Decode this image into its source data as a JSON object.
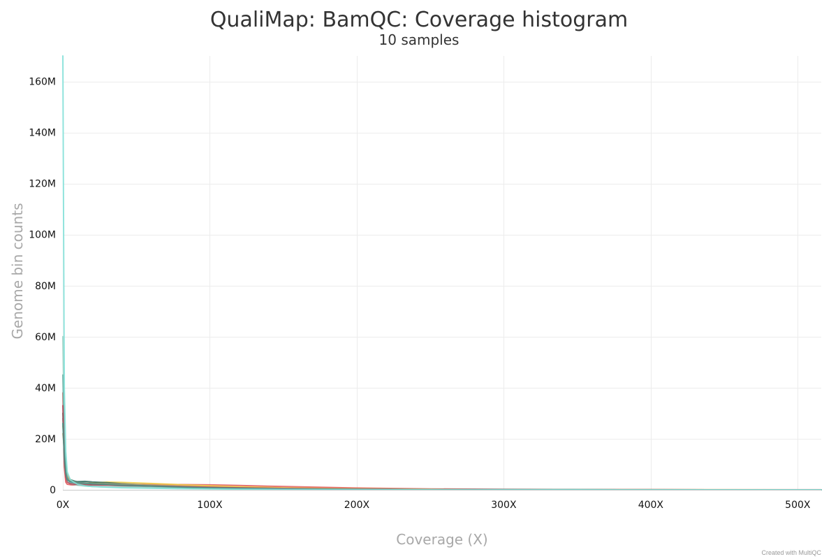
{
  "chart_data": {
    "type": "line",
    "title": "QualiMap: BamQC: Coverage histogram",
    "subtitle": "10 samples",
    "xlabel": "Coverage (X)",
    "ylabel": "Genome bin counts",
    "xlim": [
      0,
      516
    ],
    "ylim": [
      0,
      170000000
    ],
    "grid": true,
    "legend": "none",
    "credits": "Created with MultiQC",
    "x_ticks": [
      {
        "value": 0,
        "label": "0X"
      },
      {
        "value": 100,
        "label": "100X"
      },
      {
        "value": 200,
        "label": "200X"
      },
      {
        "value": 300,
        "label": "300X"
      },
      {
        "value": 400,
        "label": "400X"
      },
      {
        "value": 500,
        "label": "500X"
      }
    ],
    "y_ticks": [
      {
        "value": 0,
        "label": "0"
      },
      {
        "value": 20000000,
        "label": "20M"
      },
      {
        "value": 40000000,
        "label": "40M"
      },
      {
        "value": 60000000,
        "label": "60M"
      },
      {
        "value": 80000000,
        "label": "80M"
      },
      {
        "value": 100000000,
        "label": "100M"
      },
      {
        "value": 120000000,
        "label": "120M"
      },
      {
        "value": 140000000,
        "label": "140M"
      },
      {
        "value": 160000000,
        "label": "160M"
      }
    ],
    "series": [
      {
        "color": "#e15759",
        "x": [
          0,
          1,
          2,
          3,
          5,
          8,
          10,
          15,
          20,
          30,
          40,
          60,
          80,
          100,
          120,
          150,
          200,
          250,
          300,
          350,
          400,
          450,
          500,
          516
        ],
        "y": [
          38000000,
          9000000,
          3000000,
          2200000,
          2000000,
          1900000,
          2000000,
          1900000,
          1950000,
          2000000,
          2050000,
          2100000,
          2050000,
          1950000,
          1700000,
          1300000,
          700000,
          350000,
          200000,
          100000,
          50000,
          30000,
          20000,
          15000
        ]
      },
      {
        "color": "#f0c93c",
        "x": [
          0,
          1,
          2,
          3,
          5,
          8,
          10,
          15,
          20,
          30,
          40,
          60,
          80,
          100,
          120,
          150,
          200,
          250,
          300,
          350,
          400,
          450,
          500,
          516
        ],
        "y": [
          25000000,
          19000000,
          10000000,
          6000000,
          4000000,
          3000000,
          2800000,
          2600000,
          2700000,
          3000000,
          2900000,
          2500000,
          2000000,
          1600000,
          1200000,
          800000,
          400000,
          200000,
          100000,
          50000,
          25000,
          15000,
          10000,
          8000
        ]
      },
      {
        "color": "#2f6b5e",
        "x": [
          0,
          1,
          2,
          3,
          5,
          8,
          10,
          15,
          20,
          30,
          40,
          60,
          80,
          100,
          120,
          150,
          200,
          250,
          300,
          350,
          400,
          450,
          500,
          516
        ],
        "y": [
          30000000,
          15000000,
          8000000,
          5000000,
          4000000,
          3400000,
          3200000,
          3300000,
          3100000,
          2800000,
          2400000,
          1800000,
          1300000,
          900000,
          650000,
          400000,
          200000,
          100000,
          50000,
          25000,
          12000,
          7000,
          4000,
          3000
        ]
      },
      {
        "color": "#7a7a7a",
        "x": [
          0,
          1,
          2,
          3,
          5,
          8,
          10,
          15,
          20,
          30,
          40,
          60,
          80,
          100,
          120,
          150,
          200,
          250,
          300,
          350,
          400,
          450,
          500,
          516
        ],
        "y": [
          28000000,
          14000000,
          7000000,
          4500000,
          3500000,
          3000000,
          2800000,
          2700000,
          2500000,
          2200000,
          2000000,
          1600000,
          1200000,
          900000,
          700000,
          450000,
          220000,
          110000,
          60000,
          30000,
          15000,
          8000,
          5000,
          4000
        ]
      },
      {
        "color": "#c7a67a",
        "x": [
          0,
          1,
          2,
          3,
          5,
          8,
          10,
          15,
          20,
          30,
          40,
          60,
          80,
          100,
          120,
          150,
          200,
          250,
          300,
          350,
          400,
          450,
          500,
          516
        ],
        "y": [
          22000000,
          16000000,
          9000000,
          5500000,
          3800000,
          3000000,
          2700000,
          2500000,
          2400000,
          2300000,
          2200000,
          1900000,
          1500000,
          1100000,
          800000,
          500000,
          250000,
          120000,
          60000,
          30000,
          15000,
          8000,
          5000,
          4000
        ]
      },
      {
        "color": "#9ad0c2",
        "x": [
          0,
          1,
          2,
          3,
          5,
          8,
          10,
          15,
          20,
          30,
          40,
          60,
          80,
          100,
          120,
          150,
          200,
          250,
          300,
          350,
          400,
          450,
          500,
          516
        ],
        "y": [
          60000000,
          22000000,
          9000000,
          4000000,
          2500000,
          2000000,
          1800000,
          1500000,
          1300000,
          1100000,
          1000000,
          800000,
          600000,
          450000,
          350000,
          250000,
          150000,
          80000,
          40000,
          20000,
          10000,
          6000,
          4000,
          3000
        ]
      },
      {
        "color": "#6ab0a4",
        "x": [
          0,
          1,
          2,
          3,
          5,
          8,
          10,
          15,
          20,
          30,
          40,
          60,
          80,
          100,
          120,
          150,
          200,
          250,
          300,
          350,
          400,
          450,
          500,
          516
        ],
        "y": [
          45000000,
          18000000,
          8000000,
          4200000,
          3000000,
          2500000,
          2300000,
          2100000,
          2000000,
          1800000,
          1600000,
          1300000,
          1000000,
          750000,
          550000,
          350000,
          180000,
          90000,
          45000,
          22000,
          11000,
          6000,
          4000,
          3000
        ]
      },
      {
        "color": "#b04a5a",
        "x": [
          0,
          1,
          2,
          3,
          5,
          8,
          10,
          15,
          20,
          30,
          40,
          60,
          80,
          100,
          120,
          150,
          200,
          250,
          300,
          350,
          400,
          450,
          500,
          516
        ],
        "y": [
          33000000,
          11000000,
          5000000,
          3000000,
          2400000,
          2200000,
          2100000,
          2000000,
          1900000,
          1800000,
          1700000,
          1500000,
          1250000,
          1000000,
          800000,
          550000,
          300000,
          150000,
          80000,
          40000,
          20000,
          10000,
          6000,
          5000
        ]
      },
      {
        "color": "#4a8f86",
        "x": [
          0,
          1,
          2,
          3,
          5,
          8,
          10,
          15,
          20,
          30,
          40,
          60,
          80,
          100,
          120,
          150,
          200,
          250,
          300,
          350,
          400,
          450,
          500,
          516
        ],
        "y": [
          26000000,
          13000000,
          6500000,
          4000000,
          3200000,
          2900000,
          2700000,
          2600000,
          2400000,
          2100000,
          1900000,
          1500000,
          1100000,
          800000,
          600000,
          380000,
          190000,
          95000,
          48000,
          24000,
          12000,
          7000,
          4000,
          3000
        ]
      },
      {
        "color": "#7fe0d8",
        "x": [
          0,
          1,
          2,
          3,
          5,
          8,
          10,
          15,
          20,
          30,
          40,
          60,
          80,
          100,
          120,
          150,
          200,
          250,
          300,
          350,
          400,
          450,
          500,
          516
        ],
        "y": [
          170000000,
          40000000,
          15000000,
          7000000,
          4000000,
          2800000,
          2200000,
          1600000,
          1300000,
          1000000,
          800000,
          600000,
          450000,
          330000,
          250000,
          170000,
          100000,
          60000,
          35000,
          20000,
          10000,
          6000,
          3500,
          3000
        ]
      }
    ]
  }
}
